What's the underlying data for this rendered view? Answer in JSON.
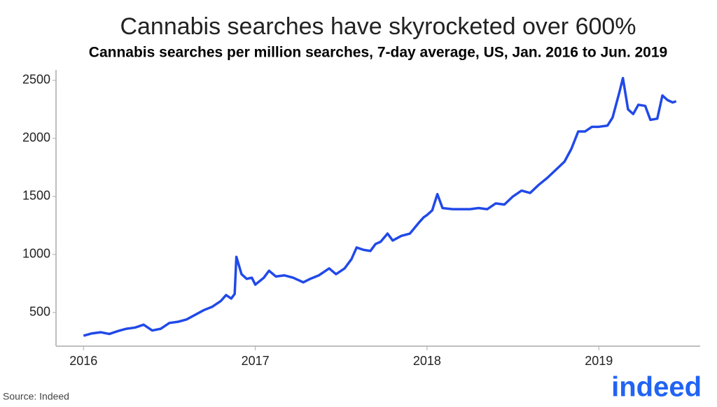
{
  "chart_data": {
    "type": "line",
    "title": "Cannabis searches have skyrocketed over 600%",
    "subtitle": "Cannabis searches per million searches, 7-day average, US, Jan. 2016 to Jun. 2019",
    "source": "Source: Indeed",
    "logo": "indeed",
    "x": [
      2016.0,
      2016.05,
      2016.1,
      2016.15,
      2016.2,
      2016.25,
      2016.3,
      2016.35,
      2016.4,
      2016.45,
      2016.5,
      2016.55,
      2016.6,
      2016.65,
      2016.7,
      2016.75,
      2016.8,
      2016.83,
      2016.86,
      2016.88,
      2016.89,
      2016.92,
      2016.95,
      2016.98,
      2017.0,
      2017.05,
      2017.08,
      2017.12,
      2017.17,
      2017.22,
      2017.28,
      2017.32,
      2017.37,
      2017.43,
      2017.47,
      2017.52,
      2017.56,
      2017.59,
      2017.63,
      2017.67,
      2017.7,
      2017.73,
      2017.77,
      2017.8,
      2017.85,
      2017.9,
      2017.95,
      2017.98,
      2018.0,
      2018.03,
      2018.06,
      2018.09,
      2018.15,
      2018.25,
      2018.3,
      2018.35,
      2018.4,
      2018.45,
      2018.5,
      2018.55,
      2018.6,
      2018.65,
      2018.7,
      2018.75,
      2018.8,
      2018.84,
      2018.88,
      2018.92,
      2018.96,
      2019.0,
      2019.05,
      2019.08,
      2019.12,
      2019.14,
      2019.17,
      2019.2,
      2019.23,
      2019.27,
      2019.3,
      2019.34,
      2019.37,
      2019.4,
      2019.43,
      2019.45
    ],
    "series": [
      {
        "name": "Cannabis searches",
        "color": "#2149e8",
        "values": [
          300,
          320,
          330,
          315,
          340,
          360,
          370,
          395,
          345,
          360,
          410,
          420,
          440,
          480,
          520,
          550,
          600,
          650,
          620,
          660,
          980,
          830,
          790,
          800,
          740,
          800,
          860,
          810,
          820,
          800,
          760,
          790,
          820,
          880,
          830,
          880,
          960,
          1060,
          1040,
          1030,
          1090,
          1110,
          1180,
          1120,
          1160,
          1180,
          1270,
          1320,
          1340,
          1380,
          1520,
          1400,
          1390,
          1390,
          1400,
          1390,
          1440,
          1430,
          1500,
          1550,
          1530,
          1600,
          1660,
          1730,
          1800,
          1910,
          2060,
          2060,
          2100,
          2100,
          2110,
          2180,
          2400,
          2520,
          2250,
          2210,
          2290,
          2280,
          2160,
          2170,
          2370,
          2330,
          2310,
          2320
        ]
      }
    ],
    "xlim": [
      2015.84,
      2019.59
    ],
    "xticks": [
      2016,
      2017,
      2018,
      2019
    ],
    "ylim": [
      210,
      2590
    ],
    "yticks": [
      500,
      1000,
      1500,
      2000,
      2500
    ]
  }
}
